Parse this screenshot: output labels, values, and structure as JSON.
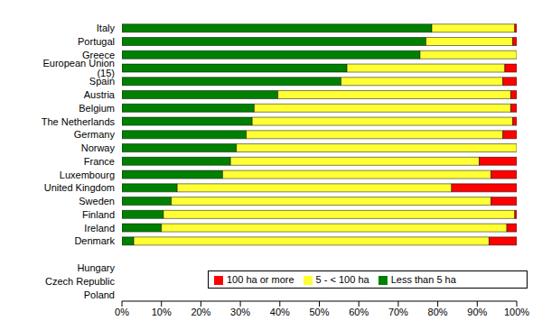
{
  "chart_data": {
    "type": "bar",
    "orientation": "horizontal",
    "stacked": true,
    "grid": false,
    "legend": "lower right",
    "categories": [
      "Italy",
      "Portugal",
      "Greece",
      "European Union (15)",
      "Spain",
      "Austria",
      "Belgium",
      "The Netherlands",
      "Germany",
      "Norway",
      "France",
      "Luxembourg",
      "United Kingdom",
      "Sweden",
      "Finland",
      "Ireland",
      "Denmark",
      null,
      "Hungary",
      "Czech Republic",
      "Poland"
    ],
    "series": [
      {
        "name": "Less than 5 ha",
        "color": "#008000",
        "values": [
          78.5,
          77,
          75.5,
          57,
          55.5,
          39.5,
          33.5,
          33,
          31.5,
          29,
          27.5,
          25.5,
          14,
          12.5,
          10.5,
          10,
          3,
          null,
          null,
          null,
          null
        ]
      },
      {
        "name": "5 - < 100 ha",
        "color": "#ffff33",
        "values": [
          21,
          22,
          24.5,
          40,
          41,
          59,
          65,
          66,
          65,
          71,
          63,
          68,
          69.5,
          81,
          89,
          87.5,
          90,
          null,
          null,
          null,
          null
        ]
      },
      {
        "name": "100 ha or more",
        "color": "#ff0000",
        "values": [
          0.5,
          1,
          0,
          3,
          3.5,
          1.5,
          1.5,
          1,
          3.5,
          0,
          9.5,
          6.5,
          16.5,
          6.5,
          0.5,
          2.5,
          7,
          null,
          null,
          null,
          null
        ]
      }
    ],
    "xlim": [
      0,
      100
    ],
    "xticks": [
      {
        "value": 0,
        "label": "0%"
      },
      {
        "value": 10,
        "label": "10%"
      },
      {
        "value": 20,
        "label": "20%"
      },
      {
        "value": 30,
        "label": "30%"
      },
      {
        "value": 40,
        "label": "40%"
      },
      {
        "value": 50,
        "label": "50%"
      },
      {
        "value": 60,
        "label": "60%"
      },
      {
        "value": 70,
        "label": "70%"
      },
      {
        "value": 80,
        "label": "80%"
      },
      {
        "value": 90,
        "label": "90%"
      },
      {
        "value": 100,
        "label": "100%"
      }
    ]
  }
}
